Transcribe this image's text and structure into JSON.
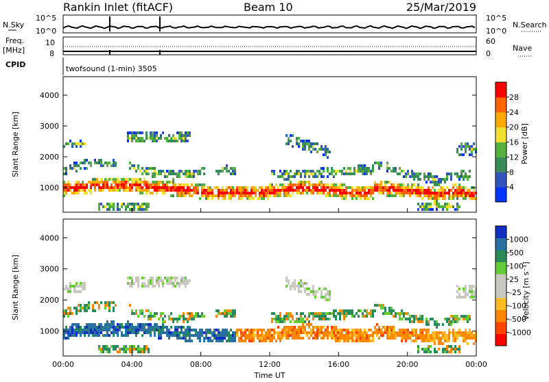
{
  "header": {
    "station": "Rankin Inlet (fitACF)",
    "beam": "Beam 10",
    "date": "25/Mar/2019"
  },
  "strips": {
    "nsky_label": "N.Sky",
    "nsky_ticks": [
      "10^5",
      "10^0"
    ],
    "nsearch_label": "N.Search",
    "nsearch_ticks": [
      "10^5",
      "10^0"
    ],
    "freq_label_1": "Freq.",
    "freq_label_2": "[MHz]",
    "freq_ticks": [
      "10",
      "8"
    ],
    "nave_label": "Nave",
    "nave_ticks": [
      "60",
      "0"
    ],
    "cpid_label": "CPID",
    "cpid_text": "twofsound (1-min) 3505"
  },
  "chart_data": [
    {
      "type": "heatmap",
      "name": "Power",
      "ylabel": "Slant Range [km]",
      "xlabel": "",
      "yticks": [
        "1000",
        "2000",
        "3000",
        "4000"
      ],
      "ylim": [
        200,
        4600
      ],
      "xlim": [
        "00:00",
        "24:00"
      ],
      "colorbar": {
        "label": "Power [dB]",
        "ticks": [
          "4",
          "8",
          "12",
          "16",
          "20",
          "24",
          "28"
        ],
        "colors": [
          "#0033ff",
          "#3355bb",
          "#3a8a5a",
          "#55b040",
          "#f0e030",
          "#ffaa00",
          "#ff6600",
          "#ff0000"
        ]
      }
    },
    {
      "type": "heatmap",
      "name": "Velocity",
      "ylabel": "Slant Range [km]",
      "xlabel": "Time UT",
      "yticks": [
        "1000",
        "2000",
        "3000",
        "4000"
      ],
      "ylim": [
        200,
        4600
      ],
      "xlim": [
        "00:00",
        "24:00"
      ],
      "xticks": [
        "00:00",
        "04:00",
        "08:00",
        "12:00",
        "16:00",
        "20:00",
        "00:00"
      ],
      "colorbar": {
        "label": "Velocity [m s⁻¹]",
        "ticks": [
          "1000",
          "500",
          "100",
          "25",
          "-25",
          "-100",
          "-500",
          "-1000"
        ],
        "colors": [
          "#1030c0",
          "#2a70a0",
          "#2a8a5a",
          "#66cc33",
          "#c8c8c0",
          "#c8c8c0",
          "#ffbb22",
          "#ff8800",
          "#ff4400",
          "#ff0000"
        ]
      }
    }
  ]
}
